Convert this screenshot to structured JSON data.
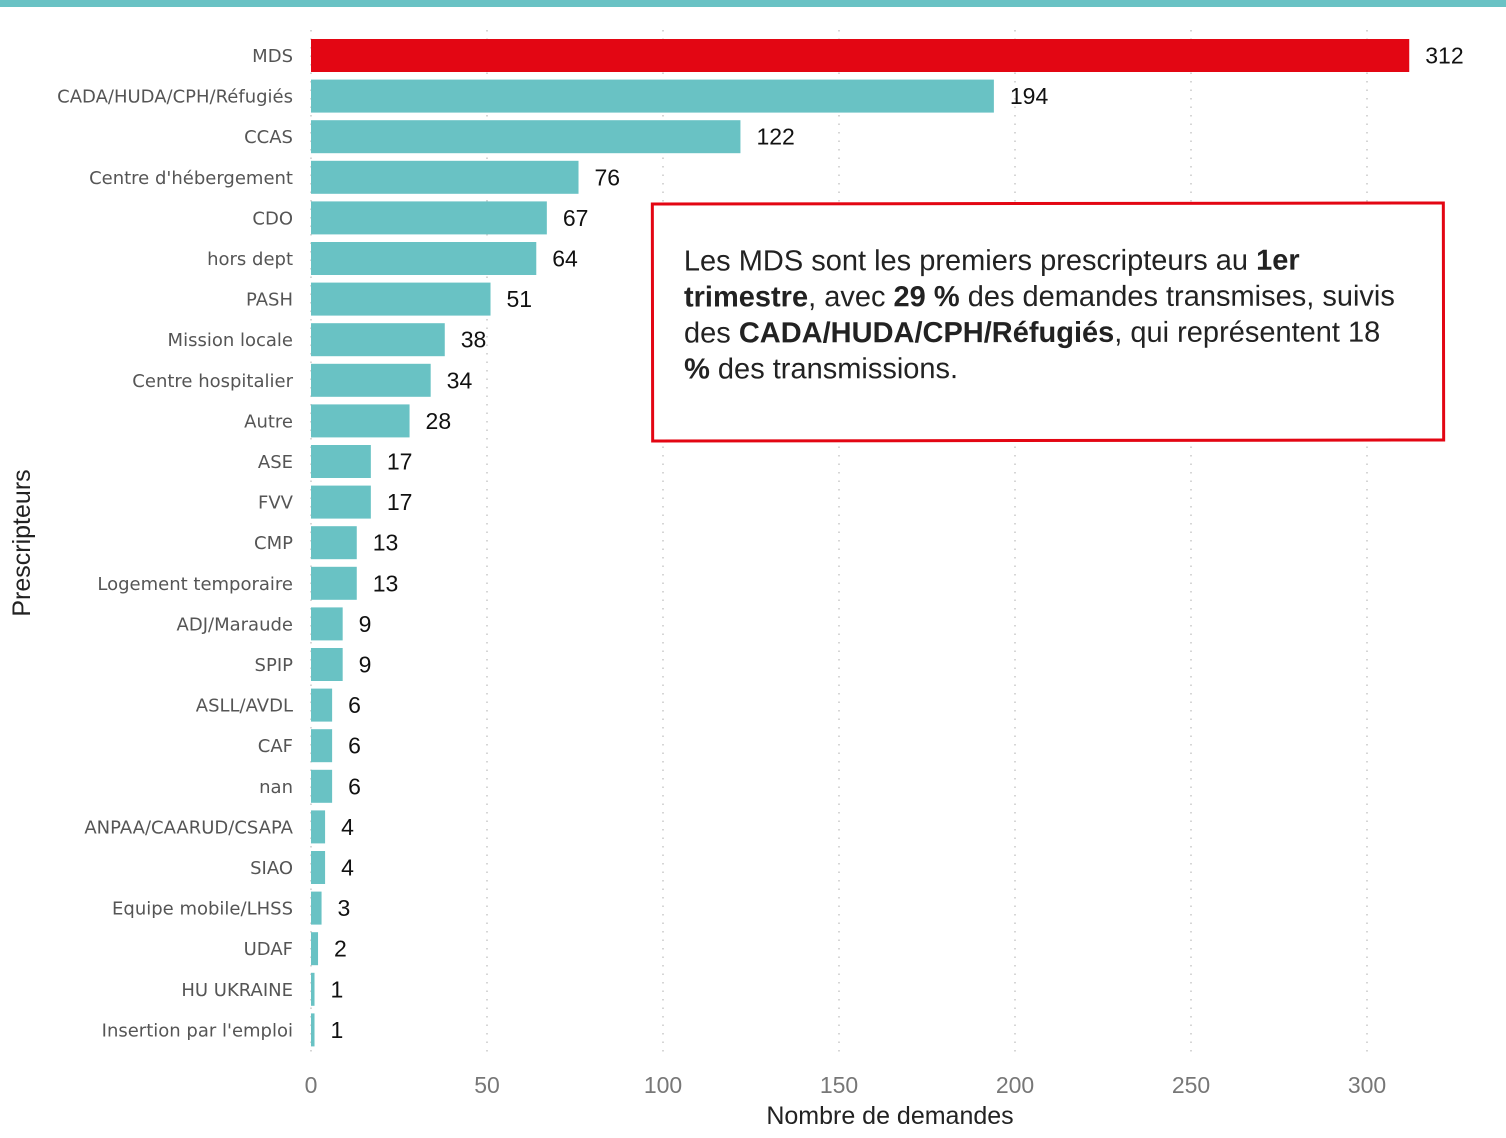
{
  "chart_data": {
    "type": "bar",
    "orientation": "horizontal",
    "categories": [
      "MDS",
      "CADA/HUDA/CPH/Réfugiés",
      "CCAS",
      "Centre d'hébergement",
      "CDO",
      "hors dept",
      "PASH",
      "Mission locale",
      "Centre hospitalier",
      "Autre",
      "ASE",
      "FVV",
      "CMP",
      "Logement temporaire",
      "ADJ/Maraude",
      "SPIP",
      "ASLL/AVDL",
      "CAF",
      "nan",
      "ANPAA/CAARUD/CSAPA",
      "SIAO",
      "Equipe mobile/LHSS",
      "UDAF",
      "HU UKRAINE",
      "Insertion par l'emploi"
    ],
    "values": [
      312,
      194,
      122,
      76,
      67,
      64,
      51,
      38,
      34,
      28,
      17,
      17,
      13,
      13,
      9,
      9,
      6,
      6,
      6,
      4,
      4,
      3,
      2,
      1,
      1
    ],
    "highlight_index": 0,
    "title": "",
    "xlabel": "Nombre de demandes",
    "ylabel": "Prescripteurs",
    "xlim": [
      0,
      325
    ],
    "xticks": [
      0,
      50,
      100,
      150,
      200,
      250,
      300
    ],
    "grid": "vertical dotted",
    "colors": {
      "bar": "#69c2c4",
      "highlight": "#e30613",
      "strip": "#69c2c4"
    }
  },
  "annotation": {
    "parts": [
      {
        "text": "Les MDS sont les premiers prescripteurs au ",
        "bold": false
      },
      {
        "text": "1er trimestre",
        "bold": true
      },
      {
        "text": ", avec ",
        "bold": false
      },
      {
        "text": "29 %",
        "bold": true
      },
      {
        "text": " des demandes transmises, suivis des ",
        "bold": false
      },
      {
        "text": "CADA/HUDA/CPH/Réfugiés",
        "bold": true
      },
      {
        "text": ", qui représentent 18 ",
        "bold": false
      },
      {
        "text": "%",
        "bold": true
      },
      {
        "text": " des transmissions.",
        "bold": false
      }
    ],
    "border_color": "#e30613"
  }
}
